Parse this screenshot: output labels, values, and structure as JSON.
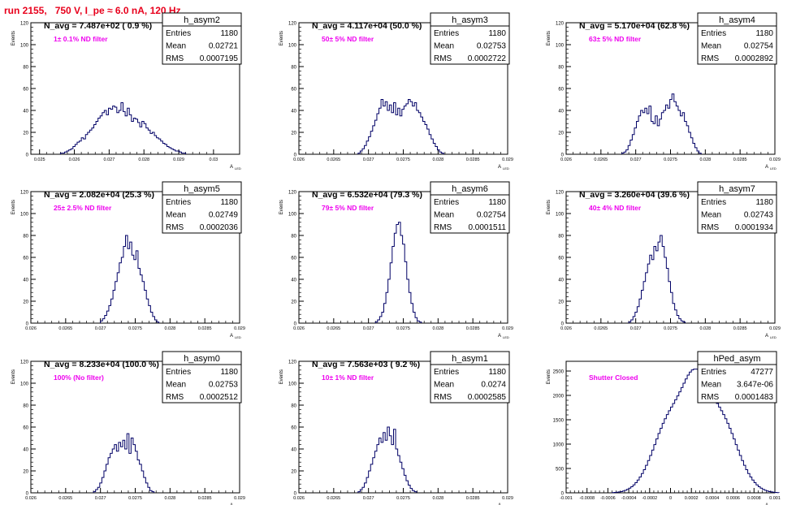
{
  "page_title": "run 2155,   750 V, I_pe ≈ 6.0 nA, 120 Hz",
  "y_axis_label": "Events",
  "x_axis_label": "A",
  "x_axis_label_sub": "LED",
  "stats_labels": {
    "entries": "Entries",
    "mean": "Mean",
    "rms": "RMS"
  },
  "colors": {
    "title": "#e8001c",
    "filter_note": "#ee00ee",
    "histogram": "#000066",
    "axis": "#000000"
  },
  "chart_data": [
    {
      "type": "histogram",
      "name": "h_asym2",
      "header": "N_avg = 7.487e+02 ( 0.9 %)",
      "note": "1± 0.1% ND filter",
      "stats": {
        "entries": "1180",
        "mean": "0.02721",
        "rms": "0.0007195"
      },
      "xlim": [
        0.02475,
        0.03075
      ],
      "ylim": [
        0,
        120
      ],
      "xticks": [
        {
          "v": 0.025,
          "l": "0.025"
        },
        {
          "v": 0.026,
          "l": "0.026"
        },
        {
          "v": 0.027,
          "l": "0.027"
        },
        {
          "v": 0.028,
          "l": "0.028"
        },
        {
          "v": 0.029,
          "l": "0.029"
        },
        {
          "v": 0.03,
          "l": "0.03"
        }
      ],
      "yticks": [
        0,
        20,
        40,
        60,
        80,
        100,
        120
      ],
      "x0": 0.0256,
      "bin_width": 6e-05,
      "values": [
        1,
        1,
        2,
        3,
        4,
        5,
        7,
        9,
        11,
        12,
        15,
        14,
        18,
        20,
        22,
        24,
        27,
        30,
        33,
        35,
        38,
        40,
        36,
        42,
        41,
        44,
        43,
        38,
        40,
        47,
        39,
        35,
        42,
        36,
        30,
        33,
        32,
        29,
        25,
        30,
        28,
        24,
        22,
        19,
        20,
        17,
        15,
        14,
        12,
        10,
        9,
        7,
        6,
        5,
        4,
        3,
        3,
        2,
        1,
        1
      ]
    },
    {
      "type": "histogram",
      "name": "h_asym3",
      "header": "N_avg = 4.117e+04 (50.0 %)",
      "note": "50± 5% ND filter",
      "stats": {
        "entries": "1180",
        "mean": "0.02753",
        "rms": "0.0002722"
      },
      "xlim": [
        0.026,
        0.029
      ],
      "ylim": [
        0,
        120
      ],
      "xticks": [
        {
          "v": 0.026,
          "l": "0.026"
        },
        {
          "v": 0.0265,
          "l": "0.0265"
        },
        {
          "v": 0.027,
          "l": "0.027"
        },
        {
          "v": 0.0275,
          "l": "0.0275"
        },
        {
          "v": 0.028,
          "l": "0.028"
        },
        {
          "v": 0.0285,
          "l": "0.0285"
        },
        {
          "v": 0.029,
          "l": "0.029"
        }
      ],
      "yticks": [
        0,
        20,
        40,
        60,
        80,
        100,
        120
      ],
      "x0": 0.02685,
      "bin_width": 3e-05,
      "values": [
        1,
        3,
        5,
        8,
        12,
        16,
        21,
        26,
        31,
        37,
        42,
        50,
        44,
        48,
        40,
        45,
        38,
        47,
        36,
        42,
        35,
        41,
        44,
        46,
        50,
        48,
        44,
        47,
        40,
        38,
        34,
        30,
        27,
        23,
        18,
        14,
        10,
        7,
        4,
        2,
        1
      ]
    },
    {
      "type": "histogram",
      "name": "h_asym4",
      "header": "N_avg = 5.170e+04 (62.8 %)",
      "note": "63± 5% ND filter",
      "stats": {
        "entries": "1180",
        "mean": "0.02754",
        "rms": "0.0002892"
      },
      "xlim": [
        0.026,
        0.029
      ],
      "ylim": [
        0,
        120
      ],
      "xticks": [
        {
          "v": 0.026,
          "l": "0.026"
        },
        {
          "v": 0.0265,
          "l": "0.0265"
        },
        {
          "v": 0.027,
          "l": "0.027"
        },
        {
          "v": 0.0275,
          "l": "0.0275"
        },
        {
          "v": 0.028,
          "l": "0.028"
        },
        {
          "v": 0.0285,
          "l": "0.0285"
        },
        {
          "v": 0.029,
          "l": "0.029"
        }
      ],
      "yticks": [
        0,
        20,
        40,
        60,
        80,
        100,
        120
      ],
      "x0": 0.0268,
      "bin_width": 3e-05,
      "values": [
        1,
        2,
        4,
        8,
        13,
        18,
        24,
        30,
        35,
        40,
        38,
        42,
        37,
        44,
        30,
        28,
        35,
        26,
        32,
        38,
        40,
        45,
        42,
        50,
        55,
        48,
        44,
        40,
        35,
        38,
        30,
        26,
        20,
        15,
        10,
        6,
        3,
        1
      ]
    },
    {
      "type": "histogram",
      "name": "h_asym5",
      "header": "N_avg = 2.082e+04 (25.3 %)",
      "note": "25± 2.5% ND filter",
      "stats": {
        "entries": "1180",
        "mean": "0.02749",
        "rms": "0.0002036"
      },
      "xlim": [
        0.026,
        0.029
      ],
      "ylim": [
        0,
        120
      ],
      "xticks": [
        {
          "v": 0.026,
          "l": "0.026"
        },
        {
          "v": 0.0265,
          "l": "0.0265"
        },
        {
          "v": 0.027,
          "l": "0.027"
        },
        {
          "v": 0.0275,
          "l": "0.0275"
        },
        {
          "v": 0.028,
          "l": "0.028"
        },
        {
          "v": 0.0285,
          "l": "0.0285"
        },
        {
          "v": 0.029,
          "l": "0.029"
        }
      ],
      "yticks": [
        0,
        20,
        40,
        60,
        80,
        100,
        120
      ],
      "x0": 0.027,
      "bin_width": 3e-05,
      "values": [
        2,
        4,
        7,
        11,
        16,
        22,
        30,
        38,
        46,
        55,
        60,
        70,
        80,
        68,
        74,
        62,
        58,
        66,
        50,
        44,
        38,
        30,
        22,
        16,
        10,
        6,
        3,
        1
      ]
    },
    {
      "type": "histogram",
      "name": "h_asym6",
      "header": "N_avg = 6.532e+04 (79.3 %)",
      "note": "79± 5% ND filter",
      "stats": {
        "entries": "1180",
        "mean": "0.02754",
        "rms": "0.0001511"
      },
      "xlim": [
        0.026,
        0.029
      ],
      "ylim": [
        0,
        120
      ],
      "xticks": [
        {
          "v": 0.026,
          "l": "0.026"
        },
        {
          "v": 0.0265,
          "l": "0.0265"
        },
        {
          "v": 0.027,
          "l": "0.027"
        },
        {
          "v": 0.0275,
          "l": "0.0275"
        },
        {
          "v": 0.028,
          "l": "0.028"
        },
        {
          "v": 0.0285,
          "l": "0.0285"
        },
        {
          "v": 0.029,
          "l": "0.029"
        }
      ],
      "yticks": [
        0,
        20,
        40,
        60,
        80,
        100,
        120
      ],
      "x0": 0.0271,
      "bin_width": 3e-05,
      "values": [
        1,
        3,
        6,
        10,
        18,
        28,
        40,
        55,
        70,
        82,
        90,
        92,
        80,
        72,
        56,
        40,
        28,
        18,
        10,
        5,
        2,
        1
      ]
    },
    {
      "type": "histogram",
      "name": "h_asym7",
      "header": "N_avg = 3.260e+04 (39.6 %)",
      "note": "40± 4% ND filter",
      "stats": {
        "entries": "1180",
        "mean": "0.02743",
        "rms": "0.0001934"
      },
      "xlim": [
        0.026,
        0.029
      ],
      "ylim": [
        0,
        120
      ],
      "xticks": [
        {
          "v": 0.026,
          "l": "0.026"
        },
        {
          "v": 0.0265,
          "l": "0.0265"
        },
        {
          "v": 0.027,
          "l": "0.027"
        },
        {
          "v": 0.0275,
          "l": "0.0275"
        },
        {
          "v": 0.028,
          "l": "0.028"
        },
        {
          "v": 0.0285,
          "l": "0.0285"
        },
        {
          "v": 0.029,
          "l": "0.029"
        }
      ],
      "yticks": [
        0,
        20,
        40,
        60,
        80,
        100,
        120
      ],
      "x0": 0.0269,
      "bin_width": 3e-05,
      "values": [
        1,
        3,
        6,
        10,
        15,
        22,
        30,
        38,
        46,
        54,
        62,
        58,
        70,
        66,
        74,
        80,
        70,
        60,
        50,
        38,
        28,
        18,
        12,
        7,
        4,
        2,
        1
      ]
    },
    {
      "type": "histogram",
      "name": "h_asym0",
      "header": "N_avg = 8.233e+04 (100.0 %)",
      "note": "100% (No filter)",
      "stats": {
        "entries": "1180",
        "mean": "0.02753",
        "rms": "0.0002512"
      },
      "xlim": [
        0.026,
        0.029
      ],
      "ylim": [
        0,
        120
      ],
      "xticks": [
        {
          "v": 0.026,
          "l": "0.026"
        },
        {
          "v": 0.0265,
          "l": "0.0265"
        },
        {
          "v": 0.027,
          "l": "0.027"
        },
        {
          "v": 0.0275,
          "l": "0.0275"
        },
        {
          "v": 0.028,
          "l": "0.028"
        },
        {
          "v": 0.0285,
          "l": "0.0285"
        },
        {
          "v": 0.029,
          "l": "0.029"
        }
      ],
      "yticks": [
        0,
        20,
        40,
        60,
        80,
        100,
        120
      ],
      "x0": 0.0269,
      "bin_width": 3e-05,
      "values": [
        1,
        3,
        5,
        9,
        14,
        20,
        26,
        32,
        36,
        40,
        44,
        38,
        46,
        42,
        48,
        40,
        54,
        36,
        50,
        44,
        38,
        30,
        26,
        20,
        14,
        9,
        5,
        2,
        1
      ]
    },
    {
      "type": "histogram",
      "name": "h_asym1",
      "header": "N_avg = 7.563e+03 ( 9.2 %)",
      "note": "10± 1% ND filter",
      "stats": {
        "entries": "1180",
        "mean": "0.0274",
        "rms": "0.0002585"
      },
      "xlim": [
        0.026,
        0.029
      ],
      "ylim": [
        0,
        120
      ],
      "xticks": [
        {
          "v": 0.026,
          "l": "0.026"
        },
        {
          "v": 0.0265,
          "l": "0.0265"
        },
        {
          "v": 0.027,
          "l": "0.027"
        },
        {
          "v": 0.0275,
          "l": "0.0275"
        },
        {
          "v": 0.028,
          "l": "0.028"
        },
        {
          "v": 0.0285,
          "l": "0.0285"
        },
        {
          "v": 0.029,
          "l": "0.029"
        }
      ],
      "yticks": [
        0,
        20,
        40,
        60,
        80,
        100,
        120
      ],
      "x0": 0.02685,
      "bin_width": 3e-05,
      "values": [
        1,
        3,
        5,
        9,
        14,
        20,
        26,
        32,
        38,
        44,
        50,
        46,
        55,
        48,
        60,
        52,
        44,
        58,
        40,
        34,
        28,
        22,
        16,
        11,
        7,
        4,
        2,
        1
      ]
    },
    {
      "type": "histogram",
      "name": "hPed_asym",
      "header": "",
      "note": "Shutter Closed",
      "stats": {
        "entries": "47277",
        "mean": "3.647e-06",
        "rms": "0.0001483"
      },
      "xlim": [
        -0.001,
        0.001
      ],
      "ylim": [
        0,
        2700
      ],
      "xticks": [
        {
          "v": -0.001,
          "l": "-0.001"
        },
        {
          "v": -0.0008,
          "l": "-0.0008"
        },
        {
          "v": -0.0006,
          "l": "-0.0006"
        },
        {
          "v": -0.0004,
          "l": "-0.0004"
        },
        {
          "v": -0.0002,
          "l": "-0.0002"
        },
        {
          "v": 0,
          "l": "0"
        },
        {
          "v": 0.0002,
          "l": "0.0002"
        },
        {
          "v": 0.0004,
          "l": "0.0004"
        },
        {
          "v": 0.0006,
          "l": "0.0006"
        },
        {
          "v": 0.0008,
          "l": "0.0008"
        },
        {
          "v": 0.001,
          "l": "0.001"
        }
      ],
      "yticks": [
        0,
        500,
        1000,
        1500,
        2000,
        2500
      ],
      "x0": -0.00056,
      "bin_width": 2e-05,
      "values": [
        4,
        8,
        12,
        18,
        26,
        37,
        52,
        71,
        95,
        126,
        163,
        209,
        262,
        324,
        395,
        476,
        565,
        662,
        767,
        877,
        990,
        1106,
        1219,
        1326,
        1427,
        1520,
        1606,
        1685,
        1760,
        1834,
        1910,
        1989,
        2073,
        2161,
        2251,
        2338,
        2416,
        2480,
        2523,
        2540,
        2540,
        2523,
        2480,
        2416,
        2338,
        2251,
        2161,
        2073,
        1989,
        1910,
        1834,
        1760,
        1685,
        1606,
        1520,
        1427,
        1326,
        1219,
        1106,
        990,
        877,
        767,
        662,
        565,
        476,
        395,
        324,
        262,
        209,
        163,
        126,
        95,
        71,
        52,
        37,
        26,
        18,
        12,
        8,
        4
      ]
    }
  ]
}
